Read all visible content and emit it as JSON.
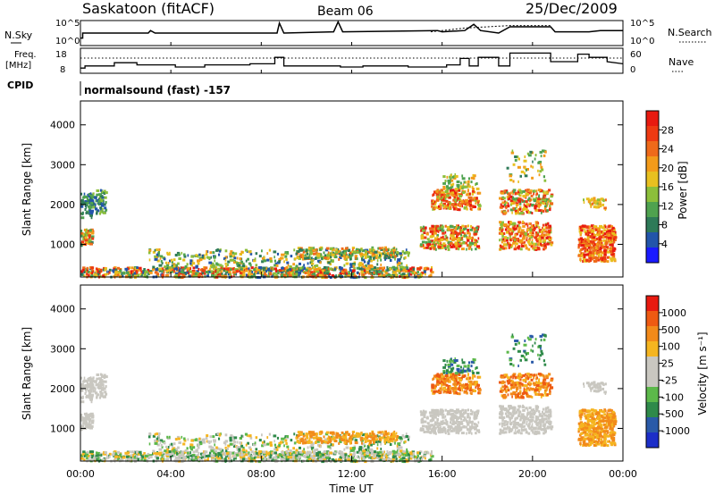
{
  "header": {
    "station": "Saskatoon (fitACF)",
    "beam": "Beam 06",
    "date": "25/Dec/2009"
  },
  "labels": {
    "nsky": "N.Sky",
    "freq_line1": "Freq.",
    "freq_line2": "[MHz]",
    "cpid": "CPID",
    "nsearch": "N.Search",
    "nave": "Nave",
    "cpid_value": "normalsound (fast) -157"
  },
  "colors": {
    "power": [
      "#1a1aff",
      "#2255aa",
      "#2e7a58",
      "#4fa24f",
      "#8cbf3a",
      "#e8c020",
      "#f39b1a",
      "#ef6a1a",
      "#ee3a12",
      "#e81a10"
    ],
    "velocity": [
      "#e81a10",
      "#ee5a12",
      "#f28a1a",
      "#f5b520",
      "#c9c7c0",
      "#c9c7c0",
      "#5cb84a",
      "#2f8a4a",
      "#2a5aa8",
      "#1c2ec8"
    ]
  },
  "chart_data": [
    {
      "type": "line",
      "name_panel": "noise",
      "x_unit": "hours UT",
      "y_left_ticks": [
        "10^5",
        "10^0"
      ],
      "y_right_ticks": [
        "10^5",
        "10^0"
      ],
      "series": [
        {
          "name": "N.Sky",
          "points": [
            [
              0,
              0.3
            ],
            [
              0.1,
              0.3
            ],
            [
              0.1,
              0.5
            ],
            [
              3,
              0.5
            ],
            [
              3.1,
              0.6
            ],
            [
              3.3,
              0.5
            ],
            [
              8.7,
              0.5
            ],
            [
              8.8,
              0.9
            ],
            [
              9.0,
              0.5
            ],
            [
              11.2,
              0.55
            ],
            [
              11.4,
              0.95
            ],
            [
              11.6,
              0.55
            ],
            [
              15.8,
              0.6
            ],
            [
              16.0,
              0.55
            ],
            [
              17.0,
              0.6
            ],
            [
              17.4,
              0.85
            ],
            [
              17.7,
              0.6
            ],
            [
              18.5,
              0.5
            ],
            [
              19.0,
              0.75
            ],
            [
              20.8,
              0.75
            ],
            [
              21.0,
              0.55
            ],
            [
              22.5,
              0.55
            ],
            [
              23.0,
              0.6
            ],
            [
              24,
              0.6
            ]
          ]
        },
        {
          "name": "N.Search",
          "points": [
            [
              15.5,
              0.55
            ],
            [
              16.5,
              0.65
            ],
            [
              17.0,
              0.7
            ],
            [
              19.0,
              0.8
            ],
            [
              20.8,
              0.8
            ]
          ]
        }
      ]
    },
    {
      "type": "line",
      "name_panel": "frequency",
      "y_left_ticks": [
        "18",
        "8"
      ],
      "y_right_ticks": [
        "60",
        "0"
      ],
      "series": [
        {
          "name": "Freq.",
          "points": [
            [
              0,
              10
            ],
            [
              0.2,
              10
            ],
            [
              0.2,
              11
            ],
            [
              1.5,
              11
            ],
            [
              1.5,
              12.5
            ],
            [
              2.5,
              12.5
            ],
            [
              2.5,
              11.5
            ],
            [
              4.2,
              11.5
            ],
            [
              4.2,
              10.5
            ],
            [
              5.5,
              10.5
            ],
            [
              5.5,
              11.5
            ],
            [
              7.5,
              11.5
            ],
            [
              7.5,
              12
            ],
            [
              8.6,
              12
            ],
            [
              8.6,
              15
            ],
            [
              9.0,
              15
            ],
            [
              9.0,
              11
            ],
            [
              11.5,
              11
            ],
            [
              11.5,
              10.5
            ],
            [
              12.5,
              10.5
            ],
            [
              12.5,
              11
            ],
            [
              14.5,
              11
            ],
            [
              14.5,
              10.5
            ],
            [
              16.2,
              10.5
            ],
            [
              16.2,
              11.5
            ],
            [
              16.8,
              11.5
            ],
            [
              16.8,
              14.5
            ],
            [
              17.2,
              14.5
            ],
            [
              17.2,
              11
            ],
            [
              17.6,
              11
            ],
            [
              17.6,
              15
            ],
            [
              18.5,
              15
            ],
            [
              18.5,
              11
            ],
            [
              19.0,
              11
            ],
            [
              19.0,
              17
            ],
            [
              20.8,
              17
            ],
            [
              20.8,
              13
            ],
            [
              22.0,
              13
            ],
            [
              22.0,
              16.5
            ],
            [
              22.5,
              16.5
            ],
            [
              22.5,
              15
            ],
            [
              23.3,
              15
            ],
            [
              23.3,
              13
            ],
            [
              24,
              12
            ]
          ]
        },
        {
          "name": "Nave",
          "points": [
            [
              0,
              40
            ],
            [
              24,
              40
            ]
          ]
        }
      ]
    },
    {
      "type": "heatmap",
      "name_panel": "power",
      "ylabel": "Slant Range [km]",
      "y_ticks": [
        1000,
        2000,
        3000,
        4000
      ],
      "colorbar": {
        "label": "Power [dB]",
        "ticks": [
          4,
          8,
          12,
          16,
          20,
          24,
          28
        ]
      }
    },
    {
      "type": "heatmap",
      "name_panel": "velocity",
      "ylabel": "Slant Range [km]",
      "y_ticks": [
        1000,
        2000,
        3000,
        4000
      ],
      "x_ticks": [
        "00:00",
        "04:00",
        "08:00",
        "12:00",
        "16:00",
        "20:00",
        "00:00"
      ],
      "xlabel": "Time UT",
      "colorbar": {
        "label": "Velocity [m s⁻¹]",
        "ticks": [
          "1000",
          "500",
          "100",
          "25",
          "-25",
          "-100",
          "-500",
          "-1000"
        ]
      }
    }
  ]
}
